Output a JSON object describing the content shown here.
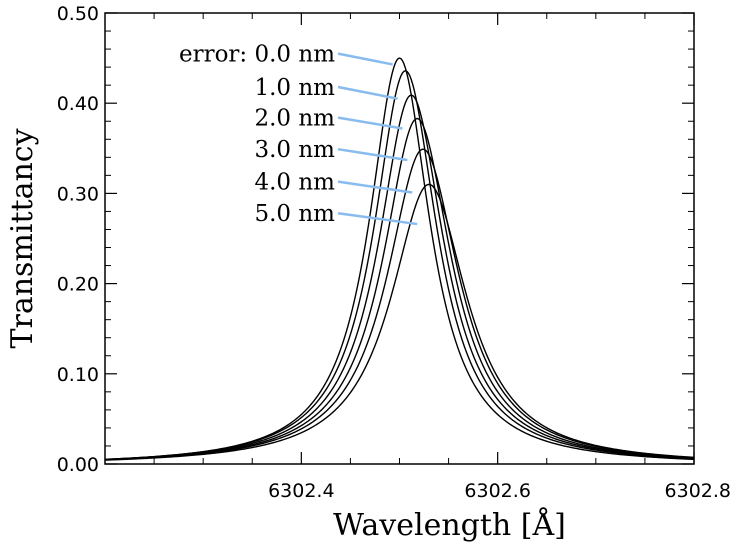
{
  "chart_data": {
    "type": "line",
    "title": "",
    "xlabel": "Wavelength [Å]",
    "ylabel": "Transmittancy",
    "xlim": [
      6302.2,
      6302.8
    ],
    "ylim": [
      0.0,
      0.5
    ],
    "xticks": [
      {
        "value": 6302.4,
        "label": "6302.4"
      },
      {
        "value": 6302.6,
        "label": "6302.6"
      },
      {
        "value": 6302.8,
        "label": "6302.8"
      }
    ],
    "yticks": [
      {
        "value": 0.0,
        "label": "0.00"
      },
      {
        "value": 0.1,
        "label": "0.10"
      },
      {
        "value": 0.2,
        "label": "0.20"
      },
      {
        "value": 0.3,
        "label": "0.30"
      },
      {
        "value": 0.4,
        "label": "0.40"
      },
      {
        "value": 0.5,
        "label": "0.50"
      }
    ],
    "grid": false,
    "line_color": "#000000",
    "annotation_line_color": "#88bbee",
    "series": [
      {
        "label": "error: 0.0 nm",
        "center": 6302.5,
        "peak": 0.452,
        "halfwidth": 0.048
      },
      {
        "label": "1.0 nm",
        "center": 6302.506,
        "peak": 0.438,
        "halfwidth": 0.05
      },
      {
        "label": "2.0 nm",
        "center": 6302.512,
        "peak": 0.411,
        "halfwidth": 0.052
      },
      {
        "label": "3.0 nm",
        "center": 6302.518,
        "peak": 0.385,
        "halfwidth": 0.054
      },
      {
        "label": "4.0 nm",
        "center": 6302.524,
        "peak": 0.351,
        "halfwidth": 0.057
      },
      {
        "label": "5.0 nm",
        "center": 6302.53,
        "peak": 0.312,
        "halfwidth": 0.06
      }
    ],
    "annotations": [
      {
        "text": "error: 0.0 nm",
        "y_text": 0.455,
        "x_target": 6302.493,
        "y_target": 0.443
      },
      {
        "text": "1.0 nm",
        "y_text": 0.418,
        "x_target": 6302.498,
        "y_target": 0.405
      },
      {
        "text": "2.0 nm",
        "y_text": 0.384,
        "x_target": 6302.503,
        "y_target": 0.372
      },
      {
        "text": "3.0 nm",
        "y_text": 0.349,
        "x_target": 6302.508,
        "y_target": 0.337
      },
      {
        "text": "4.0 nm",
        "y_text": 0.313,
        "x_target": 6302.513,
        "y_target": 0.301
      },
      {
        "text": "5.0 nm",
        "y_text": 0.278,
        "x_target": 6302.518,
        "y_target": 0.266
      }
    ]
  }
}
